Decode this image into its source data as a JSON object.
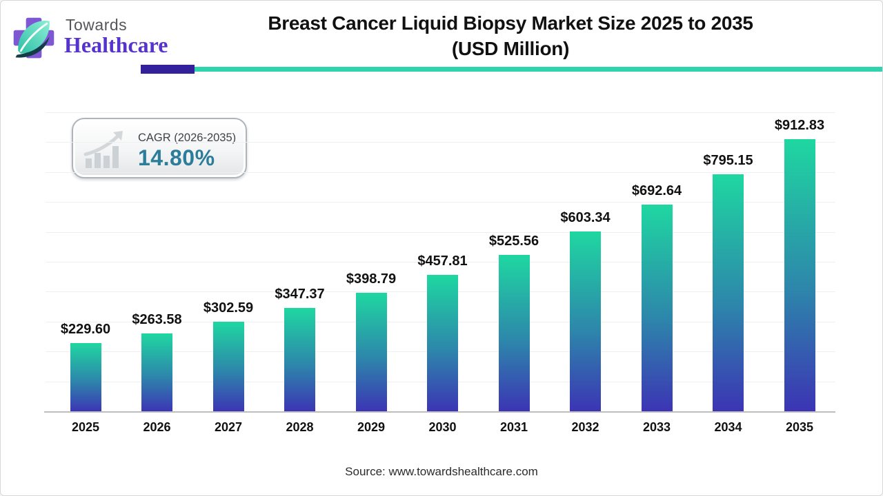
{
  "brand": {
    "name_top": "Towards",
    "name_bottom": "Healthcare",
    "logo_icon": "cross-leaf-logo"
  },
  "header": {
    "title_line1": "Breast Cancer Liquid Biopsy Market Size 2025 to 2035",
    "title_line2": "(USD Million)",
    "underline_purple": "#33219b",
    "underline_teal": "#2fd3ae"
  },
  "cagr_badge": {
    "label": "CAGR (2026-2035)",
    "value": "14.80%",
    "value_color": "#2b7d99",
    "icon": "bar-growth-icon"
  },
  "chart_data": {
    "type": "bar",
    "title": "Breast Cancer Liquid Biopsy Market Size 2025 to 2035 (USD Million)",
    "categories": [
      "2025",
      "2026",
      "2027",
      "2028",
      "2029",
      "2030",
      "2031",
      "2032",
      "2033",
      "2034",
      "2035"
    ],
    "values": [
      229.6,
      263.58,
      302.59,
      347.37,
      398.79,
      457.81,
      525.56,
      603.34,
      692.64,
      795.15,
      912.83
    ],
    "value_labels": [
      "$229.60",
      "$263.58",
      "$302.59",
      "$347.37",
      "$398.79",
      "$457.81",
      "$525.56",
      "$603.34",
      "$692.64",
      "$795.15",
      "$912.83"
    ],
    "xlabel": "",
    "ylabel": "",
    "ylim": [
      0,
      1000
    ],
    "grid": true,
    "gridline_step": 100,
    "legend": "none",
    "bar_gradient_top": "#1fd7a1",
    "bar_gradient_bottom": "#3c34b4"
  },
  "footer": {
    "source": "Source: www.towardshealthcare.com"
  }
}
